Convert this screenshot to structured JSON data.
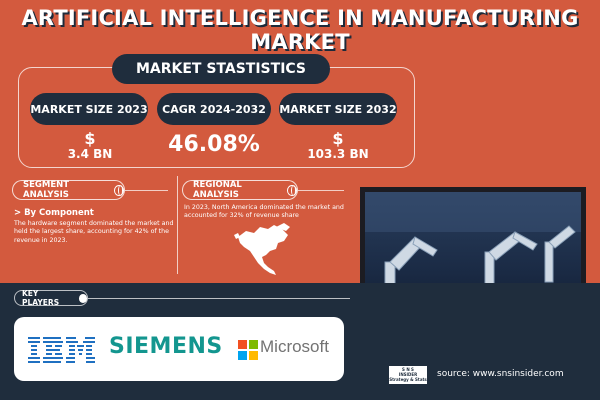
{
  "title": "ARTIFICIAL INTELLIGENCE IN MANUFACTURING MARKET",
  "stats": {
    "header": "MARKET STASTISTICS",
    "size_2023_label": "MARKET SIZE 2023",
    "size_2023_currency": "$",
    "size_2023_value": "3.4 BN",
    "cagr_label": "CAGR 2024-2032",
    "cagr_value": "46.08%",
    "size_2032_label": "MARKET SIZE 2032",
    "size_2032_currency": "$",
    "size_2032_value": "103.3 BN"
  },
  "segment": {
    "label": "SEGMENT ANALYSIS",
    "icon": "globe-icon",
    "heading": "> By Component",
    "text": "The hardware segment dominated the market and held the largest share, accounting for 42% of the revenue in 2023."
  },
  "regional": {
    "label": "REGIONAL ANALYSIS",
    "icon": "globe-icon",
    "text": "In 2023, North America dominated the market and accounted for 32% of revenue share"
  },
  "key_players": {
    "label": "KEY PLAYERS",
    "icon": "link-icon",
    "logos": [
      "IBM",
      "SIEMENS",
      "Microsoft"
    ]
  },
  "badge": {
    "line1": "S N S",
    "line2": "INSIDER",
    "line3": "Strategy & Stats"
  },
  "source": "source: www.snsinsider.com",
  "colors": {
    "background": "#d35a3e",
    "navy": "#1f2d3d",
    "siemens": "#13968f",
    "ibm": "#1f70c1"
  }
}
